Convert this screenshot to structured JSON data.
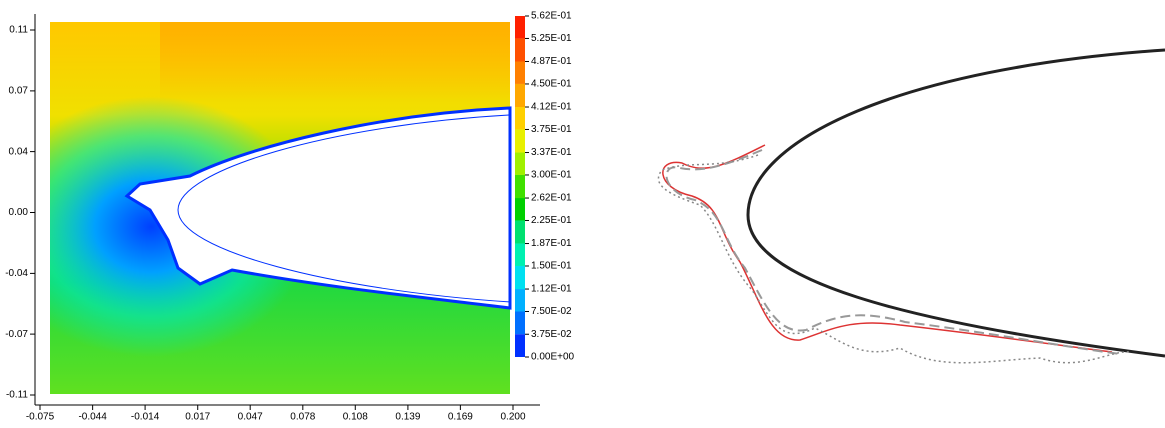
{
  "chart_data": {
    "type": "contour",
    "xlim": [
      -0.075,
      0.2
    ],
    "xticks": [
      -0.075,
      {
        "value": -0.0444,
        "label": "-0.044"
      },
      {
        "value": -0.0139,
        "label": "-0.014"
      },
      {
        "value": 0.0167,
        "label": "0.017"
      },
      {
        "value": 0.0472,
        "label": "0.047"
      },
      {
        "value": 0.0778,
        "label": "0.078"
      },
      {
        "value": 0.1083,
        "label": "0.108"
      },
      {
        "value": 0.1389,
        "label": "0.139"
      },
      {
        "value": 0.1694,
        "label": "0.169"
      },
      {
        "value": 0.2,
        "label": "0.200"
      }
    ],
    "ylim": [
      -0.11,
      0.11
    ],
    "yticks": [
      0.11,
      {
        "value": 0.0733,
        "label": "0.07"
      },
      {
        "value": 0.0367,
        "label": "0.04"
      },
      {
        "value": 0,
        "label": "0.00"
      },
      {
        "value": -0.0367,
        "label": "-0.04"
      },
      {
        "value": -0.0733,
        "label": "-0.07"
      },
      -0.11
    ],
    "clim": [
      0,
      0.562
    ],
    "cticks": [
      {
        "value": 0.562,
        "label": "5.62E-01"
      },
      {
        "value": 0.525,
        "label": "5.25E-01"
      },
      {
        "value": 0.487,
        "label": "4.87E-01"
      },
      {
        "value": 0.45,
        "label": "4.50E-01"
      },
      {
        "value": 0.412,
        "label": "4.12E-01"
      },
      {
        "value": 0.375,
        "label": "3.75E-01"
      },
      {
        "value": 0.337,
        "label": "3.37E-01"
      },
      {
        "value": 0.3,
        "label": "3.00E-01"
      },
      {
        "value": 0.262,
        "label": "2.62E-01"
      },
      {
        "value": 0.225,
        "label": "2.25E-01"
      },
      {
        "value": 0.187,
        "label": "1.87E-01"
      },
      {
        "value": 0.15,
        "label": "1.50E-01"
      },
      {
        "value": 0.112,
        "label": "1.12E-01"
      },
      {
        "value": 0.075,
        "label": "7.50E-02"
      },
      {
        "value": 0.0375,
        "label": "3.75E-02"
      },
      {
        "value": 0,
        "label": "0.00E+00"
      }
    ],
    "colors": [
      "#ff2000",
      "#ff5000",
      "#ff8000",
      "#ffa800",
      "#ffd000",
      "#e8f000",
      "#a0f000",
      "#40e000",
      "#00d000",
      "#00e070",
      "#00f0b0",
      "#00e0f0",
      "#00b0ff",
      "#0070ff",
      "#0030ff"
    ]
  }
}
